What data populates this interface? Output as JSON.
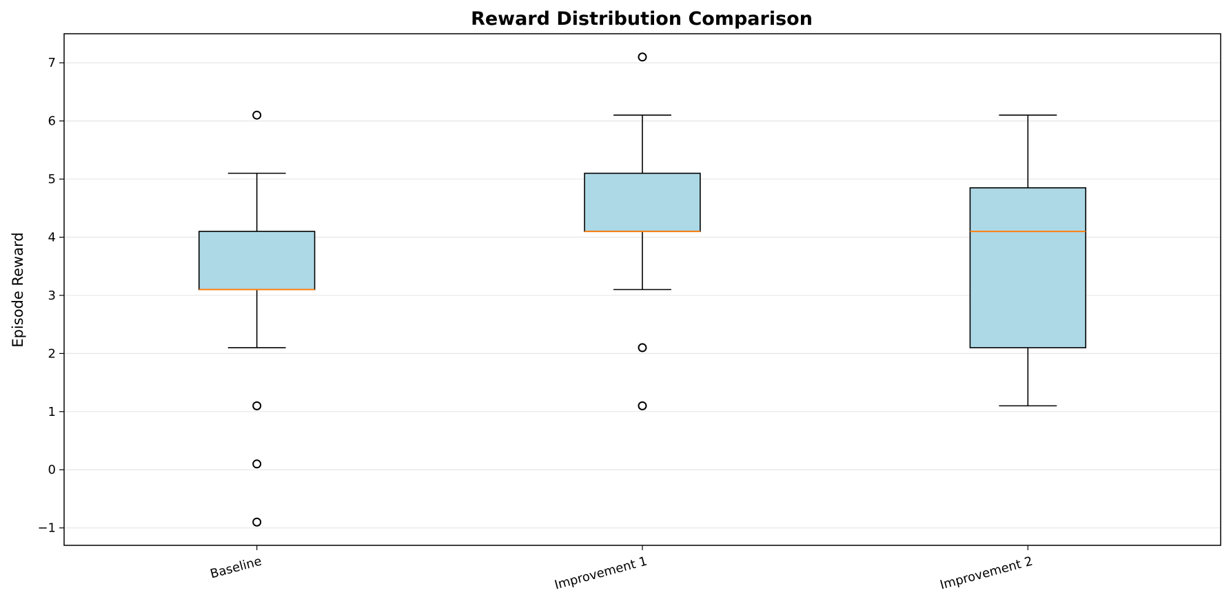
{
  "chart_data": {
    "type": "box",
    "title": "Reward Distribution Comparison",
    "xlabel": "",
    "ylabel": "Episode Reward",
    "ylim": [
      -1.3,
      7.5
    ],
    "yticks": [
      -1,
      0,
      1,
      2,
      3,
      4,
      5,
      6,
      7
    ],
    "ytick_labels": [
      "−1",
      "0",
      "1",
      "2",
      "3",
      "4",
      "5",
      "6",
      "7"
    ],
    "grid": "y",
    "categories": [
      "Baseline",
      "Improvement 1",
      "Improvement 2"
    ],
    "boxes": [
      {
        "whisker_low": 2.1,
        "q1": 3.1,
        "median": 3.1,
        "q3": 4.1,
        "whisker_high": 5.1,
        "outliers": [
          6.1,
          1.1,
          0.1,
          -0.9
        ]
      },
      {
        "whisker_low": 3.1,
        "q1": 4.1,
        "median": 4.1,
        "q3": 5.1,
        "whisker_high": 6.1,
        "outliers": [
          7.1,
          2.1,
          1.1
        ]
      },
      {
        "whisker_low": 1.1,
        "q1": 2.1,
        "median": 4.1,
        "q3": 4.85,
        "whisker_high": 6.1,
        "outliers": []
      }
    ],
    "colors": {
      "box_fill": "#add8e6",
      "box_edge": "#000000",
      "median": "#ff7f0e",
      "grid": "#e6e6e6"
    }
  }
}
